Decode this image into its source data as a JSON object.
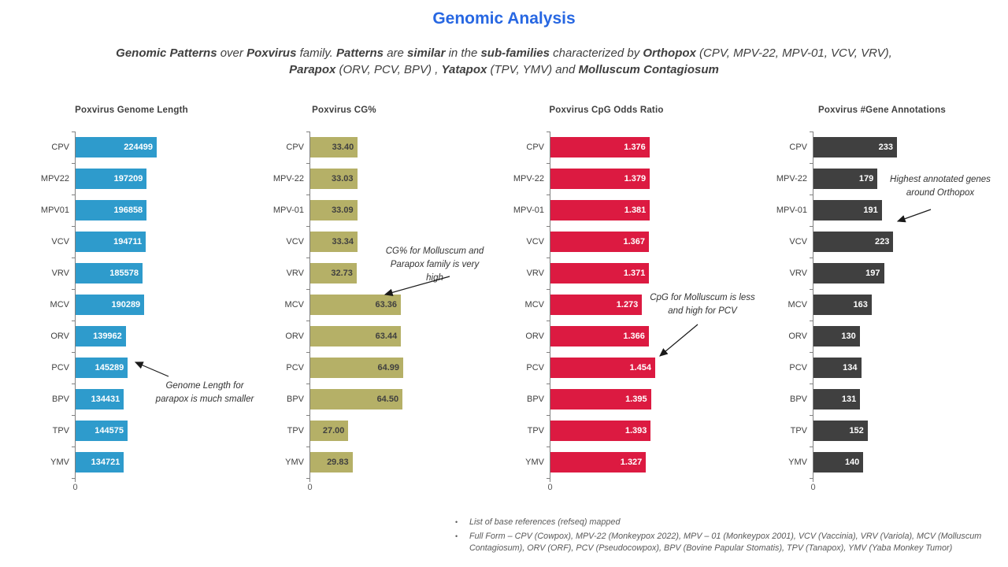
{
  "page_title": "Genomic Analysis",
  "subtitle": {
    "line1": [
      {
        "text": "Genomic Patterns",
        "bold": true
      },
      {
        "text": " over ",
        "bold": false
      },
      {
        "text": "Poxvirus",
        "bold": true
      },
      {
        "text": " family. ",
        "bold": false
      },
      {
        "text": "Patterns",
        "bold": true
      },
      {
        "text": " are ",
        "bold": false
      },
      {
        "text": "similar",
        "bold": true
      },
      {
        "text": " in the ",
        "bold": false
      },
      {
        "text": "sub-families",
        "bold": true
      },
      {
        "text": " characterized by ",
        "bold": false
      },
      {
        "text": "Orthopox",
        "bold": true
      },
      {
        "text": " (CPV, MPV-22, MPV-01, VCV, VRV),",
        "bold": false
      }
    ],
    "line2": [
      {
        "text": "Parapox",
        "bold": true
      },
      {
        "text": " (ORV, PCV, BPV) , ",
        "bold": false
      },
      {
        "text": "Yatapox",
        "bold": true
      },
      {
        "text": " (TPV, YMV) and ",
        "bold": false
      },
      {
        "text": "Molluscum Contagiosum",
        "bold": true
      }
    ]
  },
  "chart_data": [
    {
      "type": "bar",
      "orientation": "horizontal",
      "title": "Poxvirus Genome Length",
      "categories": [
        "CPV",
        "MPV22",
        "MPV01",
        "VCV",
        "VRV",
        "MCV",
        "ORV",
        "PCV",
        "BPV",
        "TPV",
        "YMV"
      ],
      "values": [
        224499,
        197209,
        196858,
        194711,
        185578,
        190289,
        139962,
        145289,
        134431,
        144575,
        134721
      ],
      "value_labels": [
        "224499",
        "197209",
        "196858",
        "194711",
        "185578",
        "190289",
        "139962",
        "145289",
        "134431",
        "144575",
        "134721"
      ],
      "bar_color": "#2E9BCC",
      "value_label_color": "#FFFFFF",
      "xticks": [
        "0"
      ],
      "annotation": "Genome Length for\nparapox is much smaller"
    },
    {
      "type": "bar",
      "orientation": "horizontal",
      "title": "Poxvirus CG%",
      "categories": [
        "CPV",
        "MPV-22",
        "MPV-01",
        "VCV",
        "VRV",
        "MCV",
        "ORV",
        "PCV",
        "BPV",
        "TPV",
        "YMV"
      ],
      "values": [
        33.4,
        33.03,
        33.09,
        33.34,
        32.73,
        63.36,
        63.44,
        64.99,
        64.5,
        27.0,
        29.83
      ],
      "value_labels": [
        "33.40",
        "33.03",
        "33.09",
        "33.34",
        "32.73",
        "63.36",
        "63.44",
        "64.99",
        "64.50",
        "27.00",
        "29.83"
      ],
      "bar_color": "#B5B067",
      "value_label_color": "#404040",
      "xticks": [
        "0"
      ],
      "annotation": "CG% for Molluscum and\nParapox family is very\nhigh"
    },
    {
      "type": "bar",
      "orientation": "horizontal",
      "title": "Poxvirus CpG Odds Ratio",
      "categories": [
        "CPV",
        "MPV-22",
        "MPV-01",
        "VCV",
        "VRV",
        "MCV",
        "ORV",
        "PCV",
        "BPV",
        "TPV",
        "YMV"
      ],
      "values": [
        1.376,
        1.379,
        1.381,
        1.367,
        1.371,
        1.273,
        1.366,
        1.454,
        1.395,
        1.393,
        1.327
      ],
      "value_labels": [
        "1.376",
        "1.379",
        "1.381",
        "1.367",
        "1.371",
        "1.273",
        "1.366",
        "1.454",
        "1.395",
        "1.393",
        "1.327"
      ],
      "bar_color": "#DC1A41",
      "value_label_color": "#FFFFFF",
      "xticks": [
        "0"
      ],
      "annotation": "CpG for Molluscum is less\nand high for PCV"
    },
    {
      "type": "bar",
      "orientation": "horizontal",
      "title": "Poxvirus #Gene Annotations",
      "categories": [
        "CPV",
        "MPV-22",
        "MPV-01",
        "VCV",
        "VRV",
        "MCV",
        "ORV",
        "PCV",
        "BPV",
        "TPV",
        "YMV"
      ],
      "values": [
        233,
        179,
        191,
        223,
        197,
        163,
        130,
        134,
        131,
        152,
        140
      ],
      "value_labels": [
        "233",
        "179",
        "191",
        "223",
        "197",
        "163",
        "130",
        "134",
        "131",
        "152",
        "140"
      ],
      "bar_color": "#404040",
      "value_label_color": "#FFFFFF",
      "xticks": [
        "0"
      ],
      "annotation": "Highest annotated genes\naround Orthopox"
    }
  ],
  "footnotes": [
    "List of base references (refseq) mapped",
    "Full Form – CPV (Cowpox), MPV-22 (Monkeypox 2022), MPV – 01 (Monkeypox 2001), VCV (Vaccinia), VRV (Variola), MCV (Molluscum Contagiosum), ORV (ORF), PCV (Pseudocowpox), BPV (Bovine Papular Stomatis), TPV (Tanapox), YMV (Yaba Monkey Tumor)"
  ],
  "colors": {
    "title": "#2767E2",
    "body_text": "#404040",
    "axis": "#808080",
    "footnote": "#595959",
    "genome_length_bars": "#2E9BCC",
    "cg_percent_bars": "#B5B067",
    "cpg_odds_bars": "#DC1A41",
    "gene_annotation_bars": "#404040"
  }
}
